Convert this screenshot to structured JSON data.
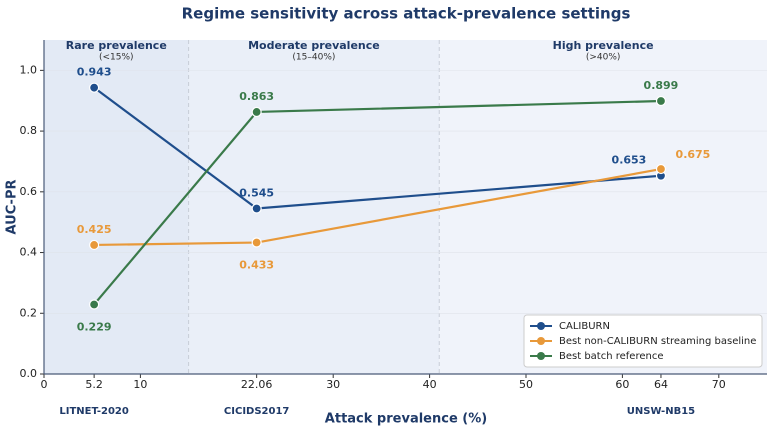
{
  "chart_data": {
    "type": "line",
    "title": "Regime sensitivity across attack-prevalence settings",
    "x_label": "Attack prevalence (%)",
    "y_label": "AUC-PR",
    "x": [
      5.2,
      22.06,
      64
    ],
    "datasets": [
      "LITNET-2020",
      "CICIDS2017",
      "UNSW-NB15"
    ],
    "series": [
      {
        "name": "CALIBURN",
        "color": "#1f4e8c",
        "values": [
          0.943,
          0.545,
          0.653
        ]
      },
      {
        "name": "Best non-CALIBURN streaming baseline",
        "color": "#e8993a",
        "values": [
          0.425,
          0.433,
          0.675
        ]
      },
      {
        "name": "Best batch reference",
        "color": "#3a7a4a",
        "values": [
          0.229,
          0.863,
          0.899
        ]
      }
    ],
    "regions": [
      {
        "name": "Rare prevalence",
        "range_label": "(<15%)",
        "start": 0,
        "end": 15,
        "color": "#e3eaf5"
      },
      {
        "name": "Moderate prevalence",
        "range_label": "(15–40%)",
        "start": 15,
        "end": 41,
        "color": "#eaeff8"
      },
      {
        "name": "High prevalence",
        "range_label": "(>40%)",
        "start": 41,
        "end": 75,
        "color": "#f0f3fa"
      }
    ],
    "xlim": [
      0,
      75
    ],
    "xticks": [
      0,
      5.2,
      10,
      22.06,
      30,
      40,
      50,
      60,
      64,
      70
    ],
    "ylim": [
      0,
      1.1
    ],
    "yticks": [
      {
        "value": 0,
        "label": "0.0"
      },
      0.2,
      0.4,
      0.6,
      0.8,
      {
        "value": 1,
        "label": "1.0"
      }
    ],
    "grid": true,
    "legend": "lower right"
  }
}
